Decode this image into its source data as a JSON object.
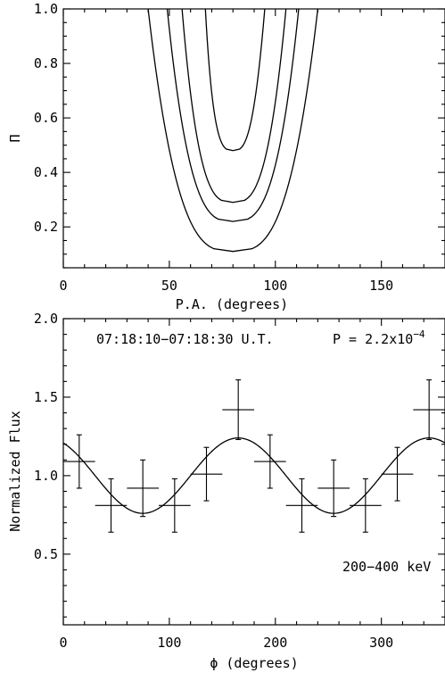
{
  "chart_data": [
    {
      "type": "line",
      "subtype": "contour",
      "xlabel": "P.A. (degrees)",
      "ylabel": "Π",
      "xlim": [
        0,
        180
      ],
      "ylim": [
        0.05,
        1.0
      ],
      "xticks": [
        "0",
        "50",
        "100",
        "150"
      ],
      "yticks": [
        "0.2",
        "0.4",
        "0.6",
        "0.8",
        "1.0"
      ],
      "center_pa": 80,
      "contours": [
        {
          "minimum": 0.48,
          "x_at_top": [
            67,
            95
          ]
        },
        {
          "minimum": 0.29,
          "x_at_top": [
            56,
            105
          ]
        },
        {
          "minimum": 0.22,
          "x_at_top": [
            49,
            111
          ]
        },
        {
          "minimum": 0.11,
          "x_at_top": [
            40,
            120
          ]
        }
      ],
      "grid": false
    },
    {
      "type": "scatter",
      "xlabel": "ϕ (degrees)",
      "ylabel": "Normalized Flux",
      "xlim": [
        0,
        360
      ],
      "ylim": [
        0.05,
        2.0
      ],
      "xticks": [
        "0",
        "100",
        "200",
        "300"
      ],
      "yticks": [
        "0.5",
        "1.0",
        "1.5",
        "2.0"
      ],
      "annotations": {
        "time": "07:18:10−07:18:30 U.T.",
        "prob_prefix": "P = 2.2x10",
        "prob_exp": "−4",
        "energy": "200−400 keV"
      },
      "points": [
        {
          "x": 15,
          "y": 1.09,
          "xerr": 15,
          "yerr": 0.17
        },
        {
          "x": 45,
          "y": 0.81,
          "xerr": 15,
          "yerr": 0.17
        },
        {
          "x": 75,
          "y": 0.92,
          "xerr": 15,
          "yerr": 0.18
        },
        {
          "x": 105,
          "y": 0.81,
          "xerr": 15,
          "yerr": 0.17
        },
        {
          "x": 135,
          "y": 1.01,
          "xerr": 15,
          "yerr": 0.17
        },
        {
          "x": 165,
          "y": 1.42,
          "xerr": 15,
          "yerr": 0.19
        },
        {
          "x": 195,
          "y": 1.09,
          "xerr": 15,
          "yerr": 0.17
        },
        {
          "x": 225,
          "y": 0.81,
          "xerr": 15,
          "yerr": 0.17
        },
        {
          "x": 255,
          "y": 0.92,
          "xerr": 15,
          "yerr": 0.18
        },
        {
          "x": 285,
          "y": 0.81,
          "xerr": 15,
          "yerr": 0.17
        },
        {
          "x": 315,
          "y": 1.01,
          "xerr": 15,
          "yerr": 0.17
        },
        {
          "x": 345,
          "y": 1.42,
          "xerr": 15,
          "yerr": 0.19
        }
      ],
      "model": {
        "mean": 1.0,
        "amplitude": 0.24,
        "phase_deg": 165,
        "period_deg": 180
      },
      "grid": false
    }
  ]
}
